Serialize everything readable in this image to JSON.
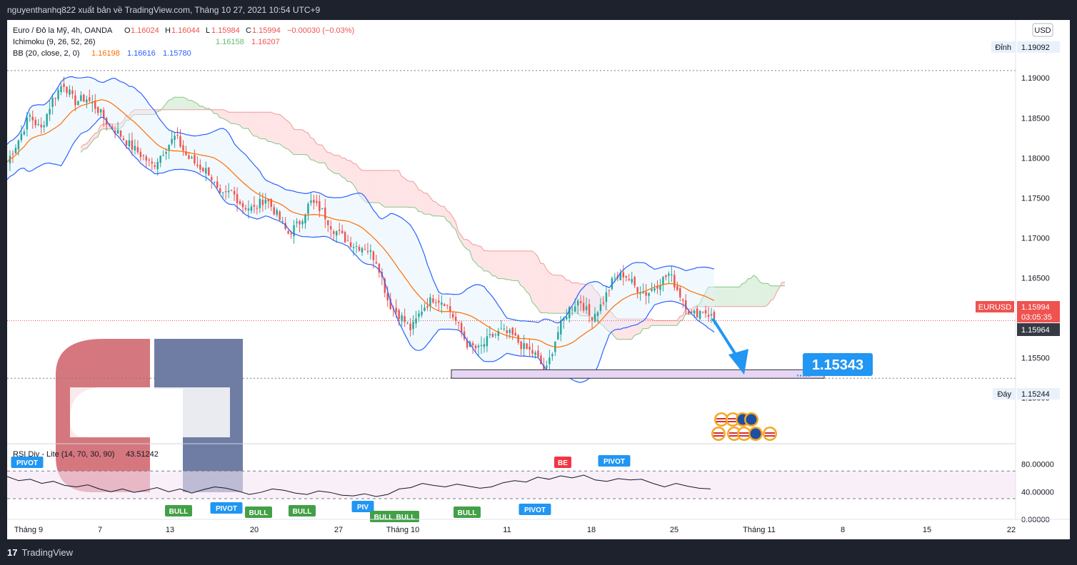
{
  "header": {
    "publish_line": "nguyenthanhq822 xuất bản về TradingView.com, Tháng 10 27, 2021 10:54 UTC+9"
  },
  "footer": {
    "brand": "TradingView"
  },
  "legend": {
    "symbol": "Euro / Đô la Mỹ, 4h, OANDA",
    "o_label": "O",
    "o": "1.16024",
    "h_label": "H",
    "h": "1.16044",
    "l_label": "L",
    "l": "1.15984",
    "c_label": "C",
    "c": "1.15994",
    "change": "−0.00030 (−0.03%)",
    "ichimoku_label": "Ichimoku (9, 26, 52, 26)",
    "ichimoku_v1": "1.16158",
    "ichimoku_v2": "1.16207",
    "bb_label": "BB (20, close, 2, 0)",
    "bb_v1": "1.16198",
    "bb_v2": "1.16616",
    "bb_v3": "1.15780",
    "rsi_label": "RSI Div - Lite (14, 70, 30, 90)",
    "rsi_value": "43.51242"
  },
  "price_axis": {
    "currency": "USD",
    "ticks": [
      "1.19000",
      "1.18500",
      "1.18000",
      "1.17500",
      "1.17000",
      "1.16500",
      "1.15500",
      "1.15000"
    ],
    "high_tag": "Đỉnh",
    "high_value": "1.19092",
    "low_tag": "Đáy",
    "low_value": "1.15244",
    "symbol_tag": "EURUSD",
    "last_price": "1.15994",
    "countdown": "03:05:35",
    "line_price": "1.15964",
    "rsi_ticks": [
      "80.00000",
      "40.00000",
      "0.00000"
    ]
  },
  "time_axis": [
    "Tháng 9",
    "7",
    "13",
    "20",
    "27",
    "Tháng 10",
    "11",
    "18",
    "25",
    "Tháng 11",
    "8",
    "15",
    "22"
  ],
  "annotation": {
    "target": "1.15343"
  },
  "signals": [
    {
      "text": "PIVOT",
      "kind": "pivot"
    },
    {
      "text": "BULL",
      "kind": "bull"
    },
    {
      "text": "PIVOT",
      "kind": "pivot"
    },
    {
      "text": "BULL",
      "kind": "bull"
    },
    {
      "text": "BULL",
      "kind": "bull"
    },
    {
      "text": "PIV",
      "kind": "pivot"
    },
    {
      "text": "BULL",
      "kind": "bull"
    },
    {
      "text": "BULL",
      "kind": "bull"
    },
    {
      "text": "BULL",
      "kind": "bull"
    },
    {
      "text": "PIVOT",
      "kind": "pivot"
    },
    {
      "text": "BE",
      "kind": "bear"
    },
    {
      "text": "PIVOT",
      "kind": "pivot"
    }
  ],
  "colors": {
    "up": "#26a69a",
    "down": "#ef5350",
    "bb": "#2962ff",
    "basis": "#ff6d00",
    "pivot": "#2196f3",
    "bull": "#43a047",
    "bear": "#f23645"
  },
  "chart_data": {
    "type": "candlestick",
    "symbol": "EURUSD",
    "timeframe": "4h",
    "ylim": [
      1.1455,
      1.1935
    ],
    "high": 1.19092,
    "low": 1.15244,
    "last": 1.15994,
    "target": 1.15343,
    "range_box": [
      1.15244,
      1.1535
    ],
    "close_path": [
      1.1795,
      1.1822,
      1.1853,
      1.1835,
      1.1872,
      1.1894,
      1.187,
      1.1875,
      1.1862,
      1.1842,
      1.183,
      1.1815,
      1.1803,
      1.179,
      1.181,
      1.1827,
      1.1802,
      1.179,
      1.1782,
      1.175,
      1.1758,
      1.174,
      1.1736,
      1.175,
      1.173,
      1.1705,
      1.1718,
      1.1745,
      1.1735,
      1.1712,
      1.17,
      1.169,
      1.1688,
      1.167,
      1.1618,
      1.1603,
      1.1585,
      1.1612,
      1.1625,
      1.162,
      1.1595,
      1.1567,
      1.156,
      1.1575,
      1.1583,
      1.1578,
      1.1563,
      1.1555,
      1.1532,
      1.158,
      1.161,
      1.1623,
      1.16,
      1.1617,
      1.1648,
      1.1655,
      1.1638,
      1.163,
      1.1643,
      1.1655,
      1.1628,
      1.1603,
      1.161,
      1.1599
    ],
    "rsi_path": [
      62,
      56,
      58,
      52,
      55,
      49,
      47,
      50,
      44,
      40,
      44,
      39,
      42,
      46,
      40,
      44,
      38,
      43,
      47,
      45,
      41,
      36,
      39,
      44,
      42,
      38,
      36,
      41,
      39,
      35,
      34,
      37,
      33,
      36,
      44,
      46,
      52,
      49,
      47,
      51,
      48,
      45,
      47,
      53,
      56,
      54,
      61,
      58,
      63,
      60,
      64,
      57,
      55,
      59,
      57,
      58,
      52,
      47,
      52,
      48,
      45,
      44
    ],
    "rsi_levels": [
      70,
      30
    ],
    "rsi_ylim": [
      0,
      95
    ]
  }
}
